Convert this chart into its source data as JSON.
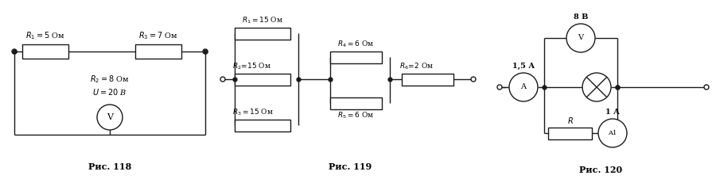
{
  "fig118": {
    "caption": "Рис. 118",
    "R1_label": "$R_1 = 5$ Ом",
    "R2_label": "$R_2 = 8$ Ом",
    "R3_label": "$R_3 = 7$ Ом",
    "U_label": "$U = 20$ В",
    "V_label": "V"
  },
  "fig119": {
    "caption": "Рис. 119",
    "R1_label": "$R_1 = 15$ Ом",
    "R2_label": "$R_2\\!=\\!15$ Ом",
    "R3_label": "$R_3 = 15$ Ом",
    "R4_label": "$R_4 = 6$ Ом",
    "R5_label": "$R_5 = 6$ Ом",
    "R6_label": "$R_6\\!=\\!2$ Ом"
  },
  "fig120": {
    "caption": "Рис. 120",
    "A_label": "A",
    "A1_label": "A1",
    "V_label": "V",
    "I_label": "1,5 А",
    "I1_label": "1 А",
    "U_label": "8 В",
    "R_label": "$R$"
  },
  "bg_color": "#ffffff",
  "line_color": "#1a1a1a",
  "line_width": 1.0
}
